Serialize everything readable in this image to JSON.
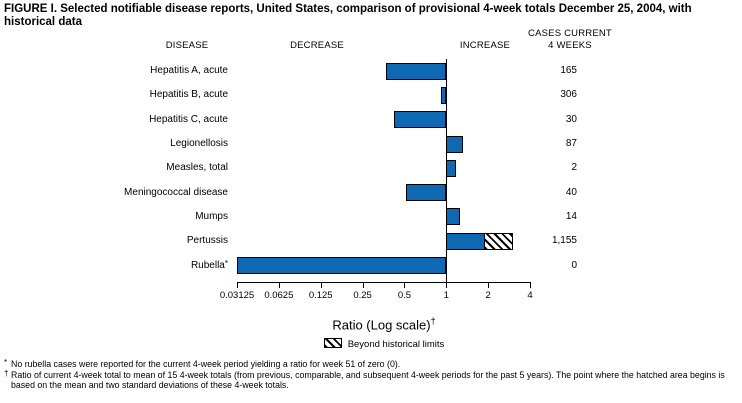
{
  "title": "FIGURE I. Selected notifiable disease reports, United States, comparison of provisional 4-week totals December 25, 2004, with historical data",
  "headers": {
    "disease": "DISEASE",
    "decrease": "DECREASE",
    "increase": "INCREASE",
    "cases_line1": "CASES CURRENT",
    "cases_line2": "4 WEEKS"
  },
  "chart_data": {
    "type": "bar",
    "orientation": "horizontal",
    "scale": "log2",
    "axis_min": 0.03125,
    "axis_max": 4,
    "ticks": [
      "0.03125",
      "0.0625",
      "0.125",
      "0.25",
      "0.5",
      "1",
      "2",
      "4"
    ],
    "xlabel": "Ratio (Log scale)",
    "xlabel_superscript": "†",
    "bar_color": "#0f68b2",
    "rows": [
      {
        "disease": "Hepatitis A, acute",
        "cases": "165",
        "ratio": 0.37
      },
      {
        "disease": "Hepatitis B, acute",
        "cases": "306",
        "ratio": 0.92
      },
      {
        "disease": "Hepatitis C, acute",
        "cases": "30",
        "ratio": 0.42
      },
      {
        "disease": "Legionellosis",
        "cases": "87",
        "ratio": 1.31
      },
      {
        "disease": "Measles, total",
        "cases": "2",
        "ratio": 1.18
      },
      {
        "disease": "Meningococcal disease",
        "cases": "40",
        "ratio": 0.51
      },
      {
        "disease": "Mumps",
        "cases": "14",
        "ratio": 1.26
      },
      {
        "disease": "Pertussis",
        "cases": "1,155",
        "ratio": 1.9,
        "beyond_limit_to": 3.0
      },
      {
        "disease": "Rubella",
        "cases": "0",
        "ratio": 0,
        "footnote_marker": "*"
      }
    ],
    "legend": {
      "label": "Beyond historical limits",
      "swatch": "hatched"
    }
  },
  "footnotes": [
    {
      "marker": "*",
      "text": "No rubella cases were reported for the current 4-week period yielding a ratio for week 51 of zero (0)."
    },
    {
      "marker": "†",
      "text": "Ratio of current 4-week total to mean of 15 4-week totals (from previous, comparable, and subsequent 4-week periods for the past 5 years). The point where the hatched area begins is based on the mean and two standard deviations of these 4-week totals."
    }
  ]
}
